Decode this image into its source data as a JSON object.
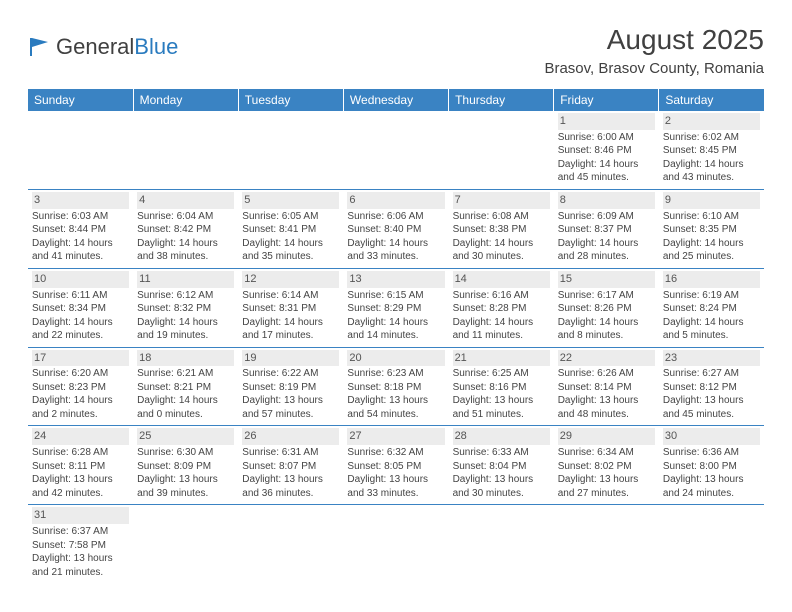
{
  "logo": {
    "text1": "General",
    "text2": "Blue"
  },
  "title": "August 2025",
  "location": "Brasov, Brasov County, Romania",
  "colors": {
    "header_bg": "#3a83c3",
    "header_text": "#ffffff",
    "daynum_bg": "#ececec",
    "border": "#3a83c3",
    "logo_gray": "#404040",
    "logo_blue": "#2a7bbf"
  },
  "weekdays": [
    "Sunday",
    "Monday",
    "Tuesday",
    "Wednesday",
    "Thursday",
    "Friday",
    "Saturday"
  ],
  "weeks": [
    [
      null,
      null,
      null,
      null,
      null,
      {
        "n": "1",
        "sr": "Sunrise: 6:00 AM",
        "ss": "Sunset: 8:46 PM",
        "d1": "Daylight: 14 hours",
        "d2": "and 45 minutes."
      },
      {
        "n": "2",
        "sr": "Sunrise: 6:02 AM",
        "ss": "Sunset: 8:45 PM",
        "d1": "Daylight: 14 hours",
        "d2": "and 43 minutes."
      }
    ],
    [
      {
        "n": "3",
        "sr": "Sunrise: 6:03 AM",
        "ss": "Sunset: 8:44 PM",
        "d1": "Daylight: 14 hours",
        "d2": "and 41 minutes."
      },
      {
        "n": "4",
        "sr": "Sunrise: 6:04 AM",
        "ss": "Sunset: 8:42 PM",
        "d1": "Daylight: 14 hours",
        "d2": "and 38 minutes."
      },
      {
        "n": "5",
        "sr": "Sunrise: 6:05 AM",
        "ss": "Sunset: 8:41 PM",
        "d1": "Daylight: 14 hours",
        "d2": "and 35 minutes."
      },
      {
        "n": "6",
        "sr": "Sunrise: 6:06 AM",
        "ss": "Sunset: 8:40 PM",
        "d1": "Daylight: 14 hours",
        "d2": "and 33 minutes."
      },
      {
        "n": "7",
        "sr": "Sunrise: 6:08 AM",
        "ss": "Sunset: 8:38 PM",
        "d1": "Daylight: 14 hours",
        "d2": "and 30 minutes."
      },
      {
        "n": "8",
        "sr": "Sunrise: 6:09 AM",
        "ss": "Sunset: 8:37 PM",
        "d1": "Daylight: 14 hours",
        "d2": "and 28 minutes."
      },
      {
        "n": "9",
        "sr": "Sunrise: 6:10 AM",
        "ss": "Sunset: 8:35 PM",
        "d1": "Daylight: 14 hours",
        "d2": "and 25 minutes."
      }
    ],
    [
      {
        "n": "10",
        "sr": "Sunrise: 6:11 AM",
        "ss": "Sunset: 8:34 PM",
        "d1": "Daylight: 14 hours",
        "d2": "and 22 minutes."
      },
      {
        "n": "11",
        "sr": "Sunrise: 6:12 AM",
        "ss": "Sunset: 8:32 PM",
        "d1": "Daylight: 14 hours",
        "d2": "and 19 minutes."
      },
      {
        "n": "12",
        "sr": "Sunrise: 6:14 AM",
        "ss": "Sunset: 8:31 PM",
        "d1": "Daylight: 14 hours",
        "d2": "and 17 minutes."
      },
      {
        "n": "13",
        "sr": "Sunrise: 6:15 AM",
        "ss": "Sunset: 8:29 PM",
        "d1": "Daylight: 14 hours",
        "d2": "and 14 minutes."
      },
      {
        "n": "14",
        "sr": "Sunrise: 6:16 AM",
        "ss": "Sunset: 8:28 PM",
        "d1": "Daylight: 14 hours",
        "d2": "and 11 minutes."
      },
      {
        "n": "15",
        "sr": "Sunrise: 6:17 AM",
        "ss": "Sunset: 8:26 PM",
        "d1": "Daylight: 14 hours",
        "d2": "and 8 minutes."
      },
      {
        "n": "16",
        "sr": "Sunrise: 6:19 AM",
        "ss": "Sunset: 8:24 PM",
        "d1": "Daylight: 14 hours",
        "d2": "and 5 minutes."
      }
    ],
    [
      {
        "n": "17",
        "sr": "Sunrise: 6:20 AM",
        "ss": "Sunset: 8:23 PM",
        "d1": "Daylight: 14 hours",
        "d2": "and 2 minutes."
      },
      {
        "n": "18",
        "sr": "Sunrise: 6:21 AM",
        "ss": "Sunset: 8:21 PM",
        "d1": "Daylight: 14 hours",
        "d2": "and 0 minutes."
      },
      {
        "n": "19",
        "sr": "Sunrise: 6:22 AM",
        "ss": "Sunset: 8:19 PM",
        "d1": "Daylight: 13 hours",
        "d2": "and 57 minutes."
      },
      {
        "n": "20",
        "sr": "Sunrise: 6:23 AM",
        "ss": "Sunset: 8:18 PM",
        "d1": "Daylight: 13 hours",
        "d2": "and 54 minutes."
      },
      {
        "n": "21",
        "sr": "Sunrise: 6:25 AM",
        "ss": "Sunset: 8:16 PM",
        "d1": "Daylight: 13 hours",
        "d2": "and 51 minutes."
      },
      {
        "n": "22",
        "sr": "Sunrise: 6:26 AM",
        "ss": "Sunset: 8:14 PM",
        "d1": "Daylight: 13 hours",
        "d2": "and 48 minutes."
      },
      {
        "n": "23",
        "sr": "Sunrise: 6:27 AM",
        "ss": "Sunset: 8:12 PM",
        "d1": "Daylight: 13 hours",
        "d2": "and 45 minutes."
      }
    ],
    [
      {
        "n": "24",
        "sr": "Sunrise: 6:28 AM",
        "ss": "Sunset: 8:11 PM",
        "d1": "Daylight: 13 hours",
        "d2": "and 42 minutes."
      },
      {
        "n": "25",
        "sr": "Sunrise: 6:30 AM",
        "ss": "Sunset: 8:09 PM",
        "d1": "Daylight: 13 hours",
        "d2": "and 39 minutes."
      },
      {
        "n": "26",
        "sr": "Sunrise: 6:31 AM",
        "ss": "Sunset: 8:07 PM",
        "d1": "Daylight: 13 hours",
        "d2": "and 36 minutes."
      },
      {
        "n": "27",
        "sr": "Sunrise: 6:32 AM",
        "ss": "Sunset: 8:05 PM",
        "d1": "Daylight: 13 hours",
        "d2": "and 33 minutes."
      },
      {
        "n": "28",
        "sr": "Sunrise: 6:33 AM",
        "ss": "Sunset: 8:04 PM",
        "d1": "Daylight: 13 hours",
        "d2": "and 30 minutes."
      },
      {
        "n": "29",
        "sr": "Sunrise: 6:34 AM",
        "ss": "Sunset: 8:02 PM",
        "d1": "Daylight: 13 hours",
        "d2": "and 27 minutes."
      },
      {
        "n": "30",
        "sr": "Sunrise: 6:36 AM",
        "ss": "Sunset: 8:00 PM",
        "d1": "Daylight: 13 hours",
        "d2": "and 24 minutes."
      }
    ],
    [
      {
        "n": "31",
        "sr": "Sunrise: 6:37 AM",
        "ss": "Sunset: 7:58 PM",
        "d1": "Daylight: 13 hours",
        "d2": "and 21 minutes."
      },
      null,
      null,
      null,
      null,
      null,
      null
    ]
  ]
}
